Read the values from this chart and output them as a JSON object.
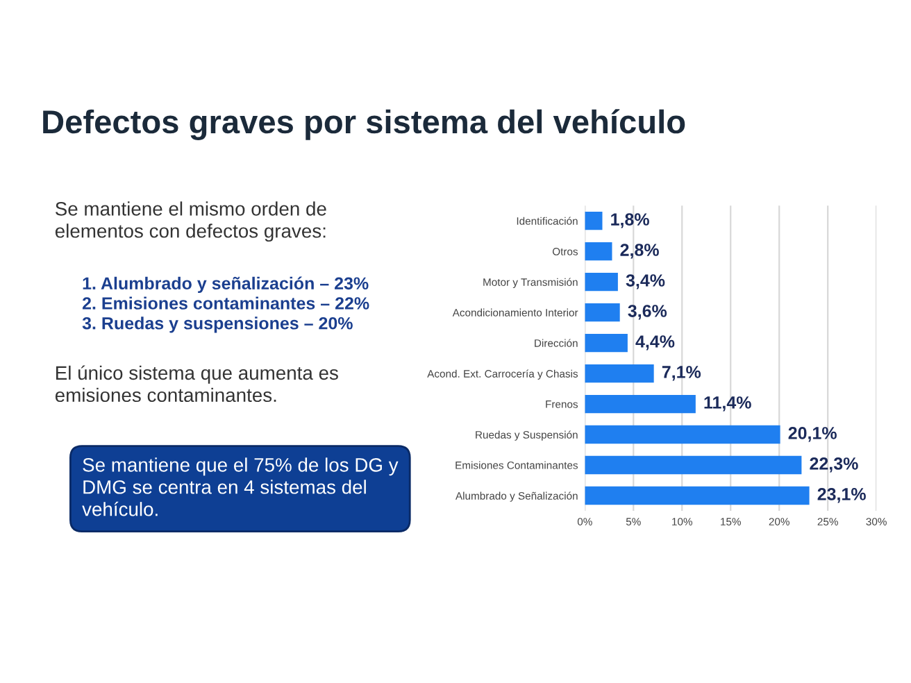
{
  "chart_data": {
    "type": "bar",
    "orientation": "horizontal",
    "title": "Defectos graves por sistema del vehículo",
    "categories": [
      "Identificación",
      "Otros",
      "Motor y Transmisión",
      "Acondicionamiento Interior",
      "Dirección",
      "Acond. Ext. Carrocería y Chasis",
      "Frenos",
      "Ruedas y Suspensión",
      "Emisiones Contaminantes",
      "Alumbrado y Señalización"
    ],
    "values": [
      1.8,
      2.8,
      3.4,
      3.6,
      4.4,
      7.1,
      11.4,
      20.1,
      22.3,
      23.1
    ],
    "value_labels": [
      "1,8%",
      "2,8%",
      "3,4%",
      "3,6%",
      "4,4%",
      "7,1%",
      "11,4%",
      "20,1%",
      "22,3%",
      "23,1%"
    ],
    "color": "#1f7ff0",
    "xlim": [
      0,
      30
    ],
    "xticks": [
      {
        "value": 0,
        "label": "0%"
      },
      {
        "value": 5,
        "label": "5%"
      },
      {
        "value": 10,
        "label": "10%"
      },
      {
        "value": 15,
        "label": "15%"
      },
      {
        "value": 20,
        "label": "20%"
      },
      {
        "value": 25,
        "label": "25%"
      },
      {
        "value": 30,
        "label": "30%"
      }
    ],
    "grid": "x",
    "annotations": [
      "Se mantiene el mismo orden de\nelementos con defectos graves:",
      "1. Alumbrado y señalización – 23%\n2. Emisiones contaminantes – 22%\n3. Ruedas y suspensiones – 20%",
      "El único sistema que aumenta es\nemisiones contaminantes.",
      "Se mantiene que el 75% de los DG y\nDMG se centra en 4 sistemas del\nvehículo."
    ]
  }
}
